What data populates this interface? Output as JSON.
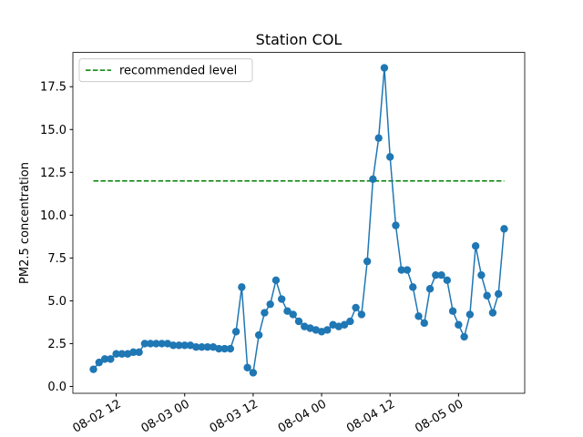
{
  "chart_data": {
    "type": "line",
    "title": "Station COL",
    "ylabel": "PM2.5 concentration",
    "x": [
      "08-02 08",
      "08-02 09",
      "08-02 10",
      "08-02 11",
      "08-02 12",
      "08-02 13",
      "08-02 14",
      "08-02 15",
      "08-02 16",
      "08-02 17",
      "08-02 18",
      "08-02 19",
      "08-02 20",
      "08-02 21",
      "08-02 22",
      "08-02 23",
      "08-03 00",
      "08-03 01",
      "08-03 02",
      "08-03 03",
      "08-03 04",
      "08-03 05",
      "08-03 06",
      "08-03 07",
      "08-03 08",
      "08-03 09",
      "08-03 10",
      "08-03 11",
      "08-03 12",
      "08-03 13",
      "08-03 14",
      "08-03 15",
      "08-03 16",
      "08-03 17",
      "08-03 18",
      "08-03 19",
      "08-03 20",
      "08-03 21",
      "08-03 22",
      "08-03 23",
      "08-04 00",
      "08-04 01",
      "08-04 02",
      "08-04 03",
      "08-04 04",
      "08-04 05",
      "08-04 06",
      "08-04 07",
      "08-04 08",
      "08-04 09",
      "08-04 10",
      "08-04 11",
      "08-04 12",
      "08-04 13",
      "08-04 14",
      "08-04 15",
      "08-04 16",
      "08-04 17",
      "08-04 18",
      "08-04 19",
      "08-04 20",
      "08-04 21",
      "08-04 22",
      "08-04 23",
      "08-05 00",
      "08-05 01",
      "08-05 02",
      "08-05 03",
      "08-05 04",
      "08-05 05",
      "08-05 06",
      "08-05 07",
      "08-05 08"
    ],
    "values": [
      1.0,
      1.4,
      1.6,
      1.6,
      1.9,
      1.9,
      1.9,
      2.0,
      2.0,
      2.5,
      2.5,
      2.5,
      2.5,
      2.5,
      2.4,
      2.4,
      2.4,
      2.4,
      2.3,
      2.3,
      2.3,
      2.3,
      2.2,
      2.2,
      2.2,
      3.2,
      5.8,
      1.1,
      0.8,
      3.0,
      4.3,
      4.8,
      6.2,
      5.1,
      4.4,
      4.2,
      3.8,
      3.5,
      3.4,
      3.3,
      3.2,
      3.3,
      3.6,
      3.5,
      3.6,
      3.8,
      4.6,
      4.2,
      7.3,
      12.1,
      14.5,
      18.6,
      13.4,
      9.4,
      6.8,
      6.8,
      5.8,
      4.1,
      3.7,
      5.7,
      6.5,
      6.5,
      6.2,
      4.4,
      3.6,
      2.9,
      4.2,
      8.2,
      6.5,
      5.3,
      4.3,
      5.4,
      9.2
    ],
    "color": "#1f77b4",
    "reference_line": {
      "name": "recommended level",
      "value": 12,
      "color": "green"
    },
    "legend": "upper left",
    "xlim": [
      "08-02 04:24",
      "08-05 11:36"
    ],
    "xticks": [
      "08-02 12",
      "08-03 00",
      "08-03 12",
      "08-04 00",
      "08-04 12",
      "08-05 00"
    ],
    "ylim": [
      -0.4,
      19.5
    ],
    "yticks": [
      {
        "value": 0,
        "label": "0.0"
      },
      2.5,
      {
        "value": 5,
        "label": "5.0"
      },
      7.5,
      {
        "value": 10,
        "label": "10.0"
      },
      12.5,
      {
        "value": 15,
        "label": "15.0"
      },
      17.5
    ]
  }
}
